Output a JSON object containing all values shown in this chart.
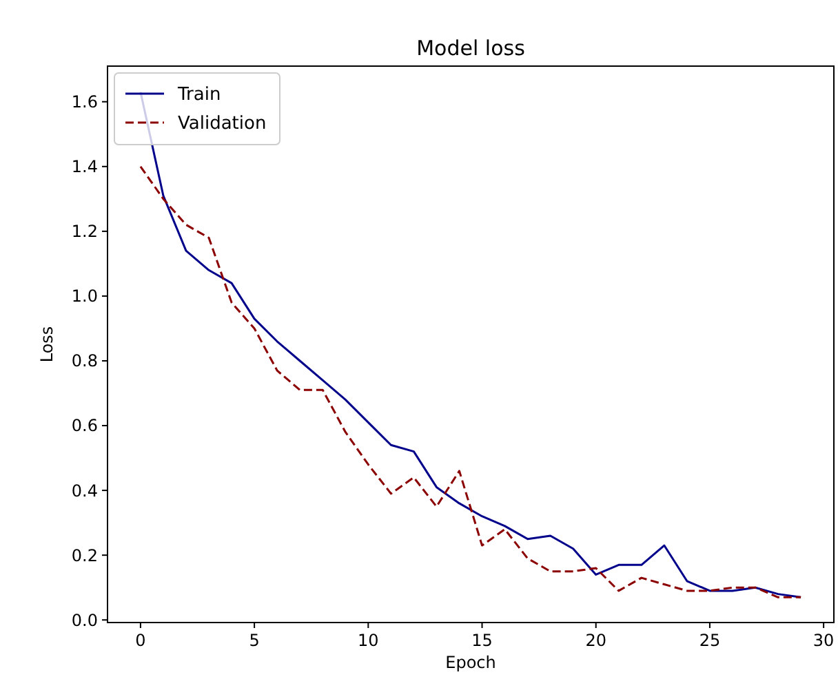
{
  "chart_data": {
    "type": "line",
    "title": "Model loss",
    "xlabel": "Epoch",
    "ylabel": "Loss",
    "x": [
      0,
      1,
      2,
      3,
      4,
      5,
      6,
      7,
      8,
      9,
      10,
      11,
      12,
      13,
      14,
      15,
      16,
      17,
      18,
      19,
      20,
      21,
      22,
      23,
      24,
      25,
      26,
      27,
      28,
      29
    ],
    "series": [
      {
        "name": "Train",
        "color": "#00008b",
        "line_style": "solid",
        "values": [
          1.63,
          1.31,
          1.14,
          1.08,
          1.04,
          0.93,
          0.86,
          0.8,
          0.74,
          0.68,
          0.61,
          0.54,
          0.52,
          0.41,
          0.36,
          0.32,
          0.29,
          0.25,
          0.26,
          0.22,
          0.14,
          0.17,
          0.17,
          0.23,
          0.12,
          0.09,
          0.09,
          0.1,
          0.08,
          0.07
        ]
      },
      {
        "name": "Validation",
        "color": "#8b0000",
        "line_style": "dashed",
        "values": [
          1.4,
          1.3,
          1.22,
          1.18,
          0.98,
          0.9,
          0.77,
          0.71,
          0.71,
          0.58,
          0.48,
          0.39,
          0.44,
          0.35,
          0.46,
          0.23,
          0.28,
          0.19,
          0.15,
          0.15,
          0.16,
          0.09,
          0.13,
          0.11,
          0.09,
          0.09,
          0.1,
          0.1,
          0.07,
          0.07
        ]
      }
    ],
    "xlim": [
      -1.45,
      30.45
    ],
    "ylim": [
      -0.008,
      1.71
    ],
    "xticks": [
      0,
      5,
      10,
      15,
      20,
      25,
      30
    ],
    "yticks": [
      {
        "value": 0,
        "label": "0.0"
      },
      {
        "value": 0.2,
        "label": "0.2"
      },
      {
        "value": 0.4,
        "label": "0.4"
      },
      {
        "value": 0.6,
        "label": "0.6"
      },
      {
        "value": 0.8,
        "label": "0.8"
      },
      {
        "value": 1.0,
        "label": "1.0"
      },
      {
        "value": 1.2,
        "label": "1.2"
      },
      {
        "value": 1.4,
        "label": "1.4"
      },
      {
        "value": 1.6,
        "label": "1.6"
      }
    ],
    "grid": false,
    "legend": "top left"
  }
}
